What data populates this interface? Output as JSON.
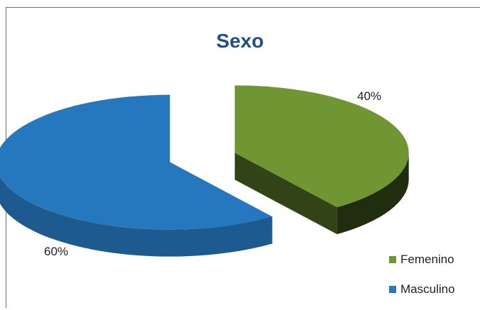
{
  "chart_data": {
    "type": "pie",
    "title": "Sexo",
    "categories": [
      "Femenino",
      "Masculino"
    ],
    "values": [
      40,
      60
    ],
    "labels": [
      "40%",
      "60%"
    ],
    "colors": [
      "#6f9632",
      "#2678be"
    ],
    "legend_position": "bottom-right",
    "style": "3d-exploded"
  }
}
